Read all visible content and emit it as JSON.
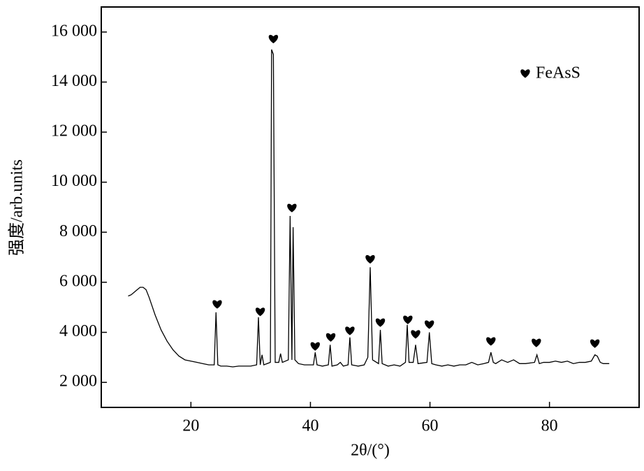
{
  "chart_data": {
    "type": "line",
    "xlabel": "2θ/(°)",
    "ylabel": "强度/arb.units",
    "xlim": [
      5,
      95
    ],
    "ylim": [
      1000,
      17000
    ],
    "xticks": [
      20,
      40,
      60,
      80
    ],
    "yticks": [
      {
        "value": 2000,
        "label": "2 000"
      },
      {
        "value": 4000,
        "label": "4 000"
      },
      {
        "value": 6000,
        "label": "6 000"
      },
      {
        "value": 8000,
        "label": "8 000"
      },
      {
        "value": 10000,
        "label": "10 000"
      },
      {
        "value": 12000,
        "label": "12 000"
      },
      {
        "value": 14000,
        "label": "14 000"
      },
      {
        "value": 16000,
        "label": "16 000"
      }
    ],
    "legend": "upper right",
    "series": [
      {
        "type": "line",
        "color": "#000000",
        "x": [
          9.5,
          10,
          10.5,
          11,
          11.5,
          12,
          12.5,
          13,
          13.5,
          14,
          15,
          16,
          17,
          18,
          19,
          20,
          21,
          22,
          23,
          23.9,
          24.2,
          24.5,
          25,
          26,
          27,
          28,
          29,
          30,
          31,
          31.3,
          31.6,
          31.9,
          32.2,
          33.3,
          33.5,
          33.8,
          34.1,
          34.7,
          35,
          35.3,
          36.3,
          36.6,
          36.9,
          37.1,
          37.4,
          38,
          39,
          40.5,
          40.8,
          41.1,
          42,
          43,
          43.3,
          43.6,
          44.5,
          45,
          45.5,
          46.3,
          46.6,
          46.9,
          48,
          49,
          49.6,
          50,
          50.4,
          51.4,
          51.7,
          52,
          53,
          54,
          55,
          55.9,
          56.2,
          56.5,
          57.2,
          57.6,
          58,
          59.5,
          59.9,
          60.3,
          61,
          62,
          63,
          64,
          65,
          66,
          67,
          68,
          69,
          69.8,
          70.2,
          70.6,
          71,
          72,
          73,
          74,
          75,
          76,
          77.5,
          77.9,
          78.3,
          79,
          80,
          81,
          82,
          83,
          84,
          85,
          86,
          87,
          87.6,
          88,
          88.5,
          89,
          90
        ],
        "values": [
          5450,
          5500,
          5600,
          5700,
          5800,
          5800,
          5700,
          5400,
          5050,
          4700,
          4100,
          3650,
          3300,
          3050,
          2900,
          2850,
          2800,
          2750,
          2700,
          2700,
          4800,
          2700,
          2650,
          2650,
          2620,
          2650,
          2650,
          2650,
          2700,
          4600,
          2700,
          3100,
          2700,
          2800,
          15300,
          15100,
          2800,
          2800,
          3150,
          2800,
          2900,
          8650,
          2900,
          8200,
          2900,
          2750,
          2700,
          2700,
          3200,
          2700,
          2650,
          2700,
          3500,
          2650,
          2700,
          2800,
          2650,
          2700,
          3800,
          2700,
          2650,
          2700,
          3000,
          6600,
          2900,
          2750,
          4100,
          2750,
          2650,
          2700,
          2650,
          2800,
          4300,
          2800,
          2800,
          3500,
          2750,
          2800,
          4000,
          2750,
          2700,
          2650,
          2700,
          2650,
          2700,
          2700,
          2800,
          2700,
          2750,
          2800,
          3200,
          2800,
          2750,
          2900,
          2800,
          2900,
          2750,
          2750,
          2800,
          3100,
          2750,
          2800,
          2800,
          2850,
          2800,
          2850,
          2750,
          2800,
          2800,
          2850,
          3100,
          3050,
          2800,
          2750,
          2750
        ]
      },
      {
        "type": "scatter",
        "name": "FeAsS",
        "marker": "heart",
        "color": "#000000",
        "x": [
          24.4,
          31.6,
          33.8,
          36.9,
          40.8,
          43.4,
          46.6,
          50.0,
          51.7,
          56.3,
          57.6,
          59.9,
          70.2,
          77.8,
          87.6
        ],
        "values": [
          5100,
          4800,
          15700,
          8950,
          3420,
          3780,
          4040,
          6900,
          4370,
          4480,
          3900,
          4290,
          3620,
          3560,
          3530
        ]
      }
    ]
  }
}
